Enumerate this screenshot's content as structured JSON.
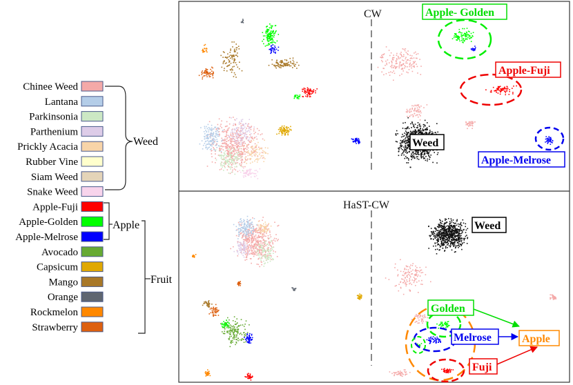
{
  "legend": {
    "items": [
      {
        "label": "Chinee Weed",
        "color": "#f4a9a8"
      },
      {
        "label": "Lantana",
        "color": "#b4cde8"
      },
      {
        "label": "Parkinsonia",
        "color": "#cce8c4"
      },
      {
        "label": "Parthenium",
        "color": "#ddcce8"
      },
      {
        "label": "Prickly Acacia",
        "color": "#f8d4a8"
      },
      {
        "label": "Rubber Vine",
        "color": "#ffffcc"
      },
      {
        "label": "Siam Weed",
        "color": "#e4d4b8"
      },
      {
        "label": "Snake Weed",
        "color": "#f8d4ec"
      },
      {
        "label": "Apple-Fuji",
        "color": "#ff0000"
      },
      {
        "label": "Apple-Golden",
        "color": "#00ff00"
      },
      {
        "label": "Apple-Melrose",
        "color": "#0000ff"
      },
      {
        "label": "Avocado",
        "color": "#66aa33"
      },
      {
        "label": "Capsicum",
        "color": "#e0a800"
      },
      {
        "label": "Mango",
        "color": "#a87828"
      },
      {
        "label": "Orange",
        "color": "#5f6670"
      },
      {
        "label": "Rockmelon",
        "color": "#ff8800"
      },
      {
        "label": "Strawberry",
        "color": "#dd6010"
      }
    ],
    "groups": {
      "weed": "Weed",
      "apple": "Apple",
      "fruit": "Fruit"
    }
  },
  "panels": {
    "top": {
      "title": "CW",
      "labels": {
        "golden": "Apple- Golden",
        "fuji": "Apple-Fuji",
        "melrose": "Apple-Melrose",
        "weed": "Weed"
      }
    },
    "bottom": {
      "title": "HaST-CW",
      "labels": {
        "weed": "Weed",
        "golden": "Golden",
        "melrose": "Melrose",
        "fuji": "Fuji",
        "apple": "Apple"
      }
    }
  }
}
